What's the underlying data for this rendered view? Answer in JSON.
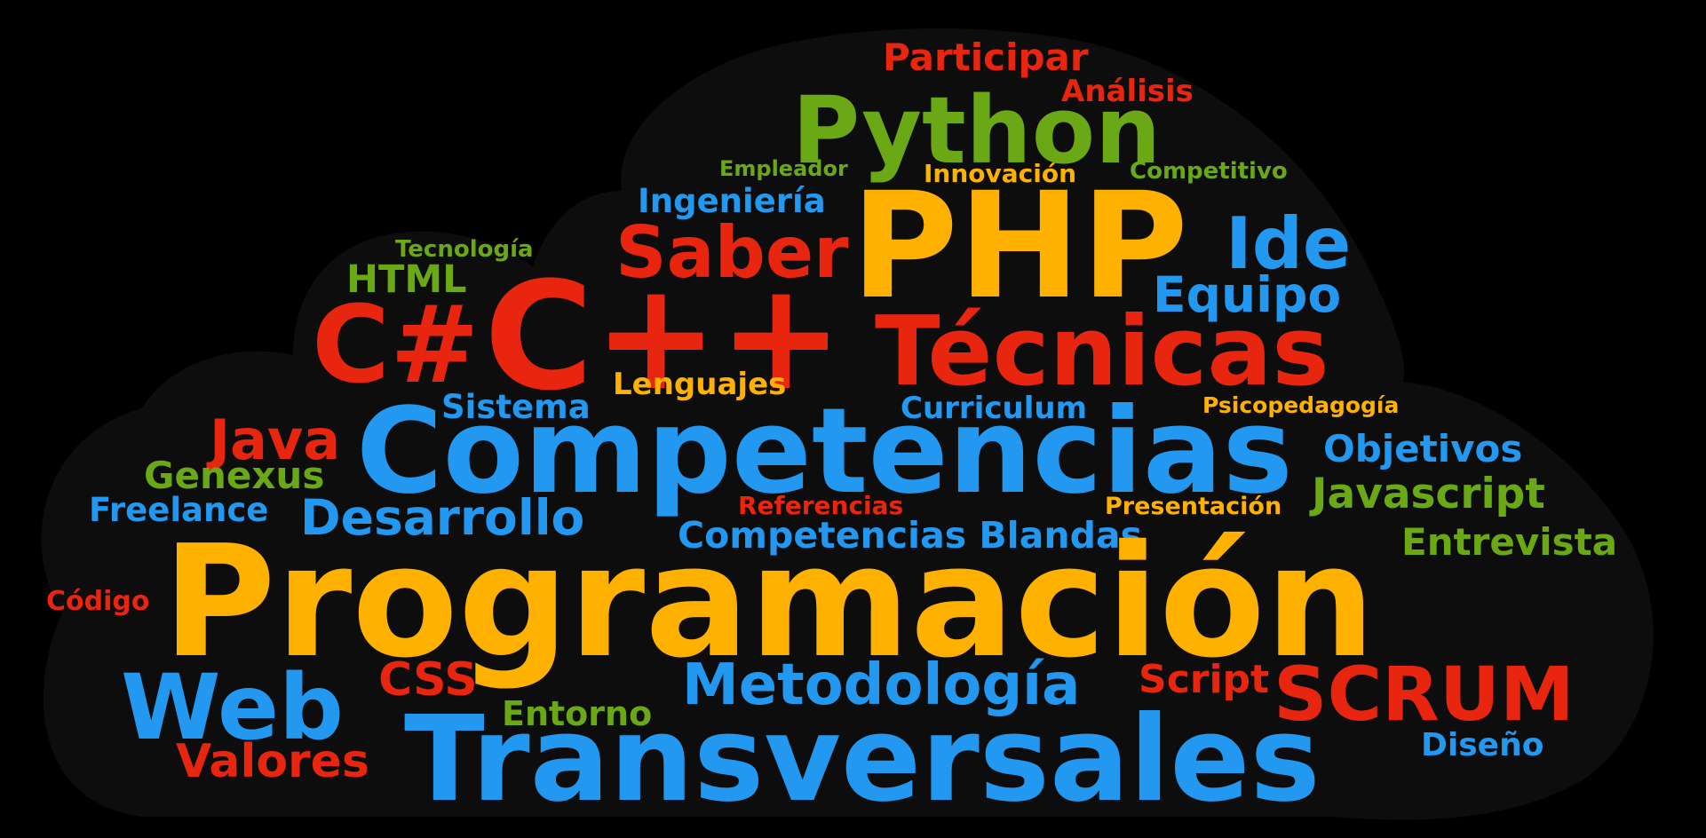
{
  "palette": {
    "background": "#000000",
    "cloud": "#0d0d0d",
    "red": "#e8260f",
    "orange": "#ffb100",
    "green": "#6aa815",
    "blue": "#2398f0"
  },
  "words": [
    {
      "id": "participar",
      "text": "Participar",
      "color": "red"
    },
    {
      "id": "analisis",
      "text": "Análisis",
      "color": "red"
    },
    {
      "id": "python",
      "text": "Python",
      "color": "green"
    },
    {
      "id": "empleador",
      "text": "Empleador",
      "color": "green"
    },
    {
      "id": "innovacion",
      "text": "Innovación",
      "color": "orange"
    },
    {
      "id": "competitivo",
      "text": "Competitivo",
      "color": "green"
    },
    {
      "id": "ingenieria",
      "text": "Ingeniería",
      "color": "blue"
    },
    {
      "id": "php",
      "text": "PHP",
      "color": "orange"
    },
    {
      "id": "tecnologia",
      "text": "Tecnología",
      "color": "green"
    },
    {
      "id": "saber",
      "text": "Saber",
      "color": "red"
    },
    {
      "id": "ide",
      "text": "Ide",
      "color": "blue"
    },
    {
      "id": "html",
      "text": "HTML",
      "color": "green"
    },
    {
      "id": "equipo",
      "text": "Equipo",
      "color": "blue"
    },
    {
      "id": "csharp",
      "text": "C#",
      "color": "red"
    },
    {
      "id": "cpp",
      "text": "C++",
      "color": "red"
    },
    {
      "id": "tecnicas",
      "text": "Técnicas",
      "color": "red"
    },
    {
      "id": "lenguajes",
      "text": "Lenguajes",
      "color": "orange"
    },
    {
      "id": "sistema",
      "text": "Sistema",
      "color": "blue"
    },
    {
      "id": "curriculum",
      "text": "Curriculum",
      "color": "blue"
    },
    {
      "id": "psicopedagogia",
      "text": "Psicopedagogía",
      "color": "orange"
    },
    {
      "id": "java",
      "text": "Java",
      "color": "red"
    },
    {
      "id": "competencias",
      "text": "Competencias",
      "color": "blue"
    },
    {
      "id": "objetivos",
      "text": "Objetivos",
      "color": "blue"
    },
    {
      "id": "genexus",
      "text": "Genexus",
      "color": "green"
    },
    {
      "id": "javascript",
      "text": "Javascript",
      "color": "green"
    },
    {
      "id": "freelance",
      "text": "Freelance",
      "color": "blue"
    },
    {
      "id": "desarrollo",
      "text": "Desarrollo",
      "color": "blue"
    },
    {
      "id": "referencias",
      "text": "Referencias",
      "color": "red"
    },
    {
      "id": "presentacion",
      "text": "Presentación",
      "color": "orange"
    },
    {
      "id": "competencias-blandas",
      "text": "Competencias Blandas",
      "color": "blue"
    },
    {
      "id": "entrevista",
      "text": "Entrevista",
      "color": "green"
    },
    {
      "id": "codigo",
      "text": "Código",
      "color": "red"
    },
    {
      "id": "programacion",
      "text": "Programación",
      "color": "orange"
    },
    {
      "id": "css",
      "text": "CSS",
      "color": "red"
    },
    {
      "id": "metodologia",
      "text": "Metodología",
      "color": "blue"
    },
    {
      "id": "script",
      "text": "Script",
      "color": "red"
    },
    {
      "id": "scrum",
      "text": "SCRUM",
      "color": "red"
    },
    {
      "id": "web",
      "text": "Web",
      "color": "blue"
    },
    {
      "id": "entorno",
      "text": "Entorno",
      "color": "green"
    },
    {
      "id": "diseno",
      "text": "Diseño",
      "color": "blue"
    },
    {
      "id": "valores",
      "text": "Valores",
      "color": "red"
    },
    {
      "id": "transversales",
      "text": "Transversales",
      "color": "blue"
    }
  ]
}
